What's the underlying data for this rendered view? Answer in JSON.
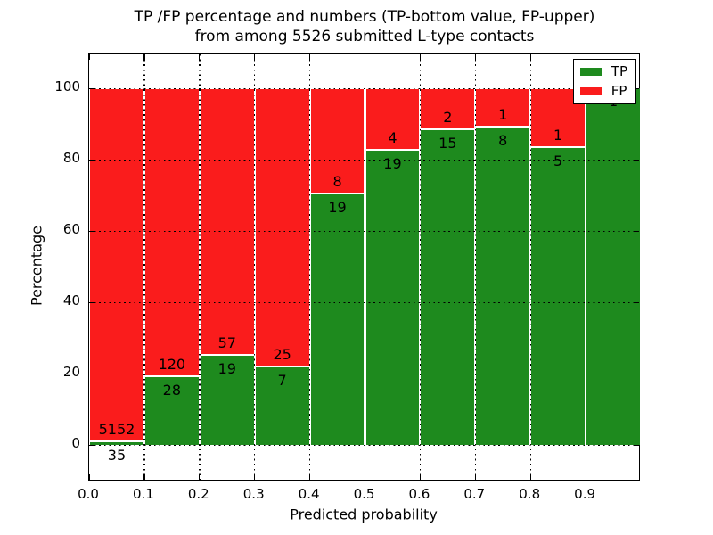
{
  "figure": {
    "title_line1": "TP /FP percentage and numbers (TP-bottom value, FP-upper)",
    "title_line2": "from among 5526 submitted L-type contacts"
  },
  "chart_data": {
    "type": "bar",
    "stacked": true,
    "normalized": "each bin stacked to 100%",
    "title": "TP /FP percentage and numbers (TP-bottom value, FP-upper)\nfrom among 5526 submitted L-type contacts",
    "xlabel": "Predicted probability",
    "ylabel": "Percentage",
    "total_contacts": 5526,
    "bin_edges": [
      0.0,
      0.1,
      0.2,
      0.3,
      0.4,
      0.5,
      0.6,
      0.7,
      0.8,
      0.9,
      1.0
    ],
    "xtick_labels": [
      "0.0",
      "0.1",
      "0.2",
      "0.3",
      "0.4",
      "0.5",
      "0.6",
      "0.7",
      "0.8",
      "0.9"
    ],
    "yticks": [
      0,
      20,
      40,
      60,
      80,
      100
    ],
    "ytick_labels": [
      "0",
      "20",
      "40",
      "60",
      "80",
      "100"
    ],
    "xlim": [
      0.0,
      1.0
    ],
    "ylim": [
      -10.25,
      109.5
    ],
    "grid": "dotted",
    "bar_edge_color": "#ffffff",
    "series": [
      {
        "name": "TP",
        "color": "#1e8a1e",
        "counts": [
          35,
          28,
          19,
          7,
          19,
          19,
          15,
          8,
          5,
          1
        ]
      },
      {
        "name": "FP",
        "color": "#fa1c1c",
        "counts": [
          5152,
          120,
          57,
          25,
          8,
          4,
          2,
          1,
          1,
          0
        ]
      }
    ],
    "tp_percent_of_bin": [
      0.67,
      18.92,
      25.0,
      21.88,
      70.37,
      82.61,
      88.24,
      88.89,
      83.33,
      100.0
    ],
    "legend": {
      "position": "upper right",
      "entries": [
        "TP",
        "FP"
      ]
    }
  }
}
